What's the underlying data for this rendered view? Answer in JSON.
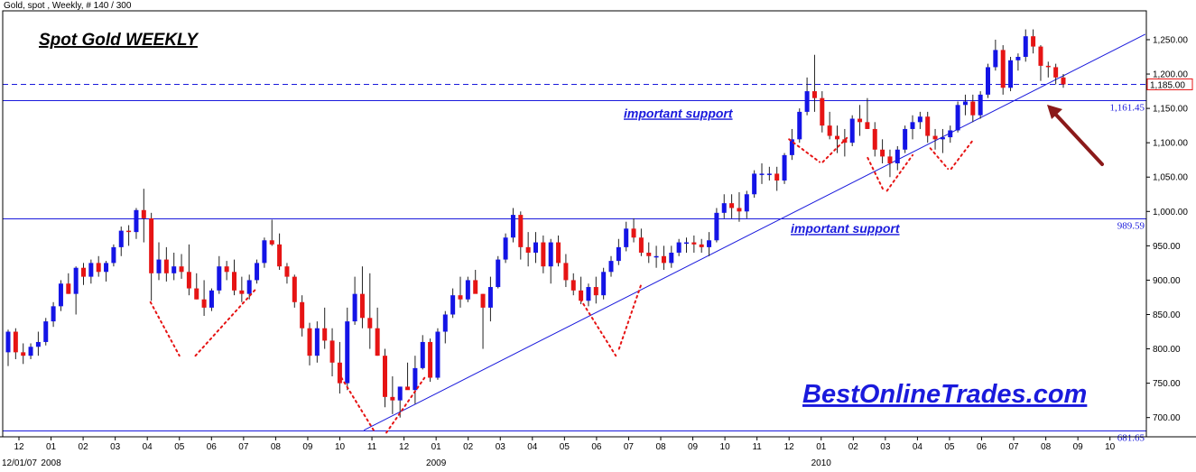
{
  "header_text": "Gold, spot , Weekly, # 140 / 300",
  "chart_data": {
    "type": "candlestick",
    "title": "Spot Gold WEEKLY",
    "xlabel": "",
    "ylabel": "",
    "ylim": [
      672,
      1292
    ],
    "y_ticks": [
      700,
      750,
      800,
      850,
      900,
      950,
      1000,
      1050,
      1100,
      1150,
      1200,
      1250
    ],
    "y_tick_labels": [
      "700.00",
      "750.00",
      "800.00",
      "850.00",
      "900.00",
      "950.00",
      "1,000.00",
      "1,050.00",
      "1,100.00",
      "1,150.00",
      "1,200.00",
      "1,250.00"
    ],
    "x_tick_labels": [
      "12",
      "01",
      "02",
      "03",
      "04",
      "05",
      "06",
      "07",
      "08",
      "09",
      "10",
      "11",
      "12",
      "01",
      "02",
      "03",
      "04",
      "05",
      "06",
      "07",
      "08",
      "09",
      "10",
      "11",
      "12",
      "01",
      "02",
      "03",
      "04",
      "05",
      "06",
      "07",
      "08",
      "09",
      "10"
    ],
    "x_year_labels": [
      {
        "label": "12/01/07",
        "index": 0
      },
      {
        "label": "2008",
        "index": 1
      },
      {
        "label": "2009",
        "index": 13
      },
      {
        "label": "2010",
        "index": 25
      }
    ],
    "colors": {
      "up": "#1414e6",
      "down": "#e61414",
      "line": "#1a1adc",
      "dotted": "#e61414",
      "arrow": "#8b1a1a"
    },
    "last_price_label": "1,185.00",
    "levels": [
      {
        "value": 1161.45,
        "label": "1,161.45"
      },
      {
        "value": 989.59,
        "label": "989.59"
      },
      {
        "value": 681.65,
        "label": "681.65"
      }
    ],
    "dashed_level": 1185,
    "annotations": [
      {
        "text": "important support",
        "level_index": 0
      },
      {
        "text": "important support",
        "level_index": 1
      }
    ],
    "trendline": {
      "from": {
        "month": 10.75,
        "value": 681.65
      },
      "to": {
        "month": 35.1,
        "value": 1258
      }
    },
    "dotted_segments": [
      [
        [
          4.1,
          868
        ],
        [
          5.0,
          790
        ]
      ],
      [
        [
          5.5,
          790
        ],
        [
          7.4,
          888
        ]
      ],
      [
        [
          10.05,
          758
        ],
        [
          11.1,
          678
        ]
      ],
      [
        [
          11.45,
          678
        ],
        [
          12.7,
          762
        ]
      ],
      [
        [
          17.5,
          872
        ],
        [
          18.6,
          790
        ]
      ],
      [
        [
          18.7,
          800
        ],
        [
          19.4,
          895
        ]
      ],
      [
        [
          24.0,
          1105
        ],
        [
          24.95,
          1072
        ]
      ],
      [
        [
          25.05,
          1072
        ],
        [
          25.8,
          1107
        ]
      ],
      [
        [
          26.45,
          1078
        ],
        [
          26.95,
          1030
        ]
      ],
      [
        [
          27.05,
          1030
        ],
        [
          27.85,
          1082
        ]
      ],
      [
        [
          28.4,
          1092
        ],
        [
          28.95,
          1062
        ]
      ],
      [
        [
          29.05,
          1062
        ],
        [
          29.75,
          1105
        ]
      ]
    ],
    "brand": "BestOnlineTrades.com",
    "candles": [
      {
        "o": 795,
        "h": 828,
        "l": 775,
        "c": 825
      },
      {
        "o": 825,
        "h": 830,
        "l": 785,
        "c": 795
      },
      {
        "o": 795,
        "h": 808,
        "l": 778,
        "c": 790
      },
      {
        "o": 790,
        "h": 808,
        "l": 785,
        "c": 803
      },
      {
        "o": 803,
        "h": 825,
        "l": 790,
        "c": 810
      },
      {
        "o": 810,
        "h": 845,
        "l": 805,
        "c": 840
      },
      {
        "o": 840,
        "h": 868,
        "l": 832,
        "c": 862
      },
      {
        "o": 862,
        "h": 900,
        "l": 855,
        "c": 895
      },
      {
        "o": 895,
        "h": 910,
        "l": 880,
        "c": 880
      },
      {
        "o": 880,
        "h": 920,
        "l": 850,
        "c": 918
      },
      {
        "o": 918,
        "h": 925,
        "l": 893,
        "c": 905
      },
      {
        "o": 905,
        "h": 930,
        "l": 895,
        "c": 925
      },
      {
        "o": 925,
        "h": 935,
        "l": 905,
        "c": 912
      },
      {
        "o": 912,
        "h": 928,
        "l": 898,
        "c": 925
      },
      {
        "o": 925,
        "h": 952,
        "l": 920,
        "c": 948
      },
      {
        "o": 948,
        "h": 978,
        "l": 935,
        "c": 972
      },
      {
        "o": 972,
        "h": 980,
        "l": 950,
        "c": 970
      },
      {
        "o": 970,
        "h": 1005,
        "l": 960,
        "c": 1002
      },
      {
        "o": 1002,
        "h": 1033,
        "l": 955,
        "c": 990
      },
      {
        "o": 990,
        "h": 998,
        "l": 870,
        "c": 910
      },
      {
        "o": 910,
        "h": 955,
        "l": 900,
        "c": 930
      },
      {
        "o": 930,
        "h": 948,
        "l": 898,
        "c": 910
      },
      {
        "o": 910,
        "h": 940,
        "l": 900,
        "c": 920
      },
      {
        "o": 920,
        "h": 938,
        "l": 902,
        "c": 912
      },
      {
        "o": 912,
        "h": 952,
        "l": 878,
        "c": 888
      },
      {
        "o": 888,
        "h": 910,
        "l": 872,
        "c": 872
      },
      {
        "o": 872,
        "h": 900,
        "l": 848,
        "c": 860
      },
      {
        "o": 860,
        "h": 888,
        "l": 855,
        "c": 885
      },
      {
        "o": 885,
        "h": 935,
        "l": 880,
        "c": 920
      },
      {
        "o": 920,
        "h": 928,
        "l": 900,
        "c": 912
      },
      {
        "o": 912,
        "h": 930,
        "l": 878,
        "c": 885
      },
      {
        "o": 885,
        "h": 905,
        "l": 868,
        "c": 880
      },
      {
        "o": 880,
        "h": 908,
        "l": 872,
        "c": 900
      },
      {
        "o": 900,
        "h": 930,
        "l": 895,
        "c": 925
      },
      {
        "o": 925,
        "h": 962,
        "l": 918,
        "c": 958
      },
      {
        "o": 958,
        "h": 988,
        "l": 950,
        "c": 952
      },
      {
        "o": 952,
        "h": 968,
        "l": 915,
        "c": 920
      },
      {
        "o": 920,
        "h": 925,
        "l": 895,
        "c": 905
      },
      {
        "o": 905,
        "h": 908,
        "l": 860,
        "c": 868
      },
      {
        "o": 868,
        "h": 878,
        "l": 818,
        "c": 830
      },
      {
        "o": 830,
        "h": 838,
        "l": 776,
        "c": 790
      },
      {
        "o": 790,
        "h": 840,
        "l": 780,
        "c": 830
      },
      {
        "o": 830,
        "h": 860,
        "l": 800,
        "c": 812
      },
      {
        "o": 812,
        "h": 830,
        "l": 760,
        "c": 780
      },
      {
        "o": 780,
        "h": 810,
        "l": 735,
        "c": 750
      },
      {
        "o": 750,
        "h": 860,
        "l": 740,
        "c": 840
      },
      {
        "o": 840,
        "h": 905,
        "l": 835,
        "c": 880
      },
      {
        "o": 880,
        "h": 920,
        "l": 830,
        "c": 845
      },
      {
        "o": 845,
        "h": 910,
        "l": 800,
        "c": 830
      },
      {
        "o": 830,
        "h": 860,
        "l": 790,
        "c": 790
      },
      {
        "o": 790,
        "h": 800,
        "l": 715,
        "c": 730
      },
      {
        "o": 730,
        "h": 760,
        "l": 705,
        "c": 725
      },
      {
        "o": 725,
        "h": 745,
        "l": 700,
        "c": 745
      },
      {
        "o": 745,
        "h": 780,
        "l": 742,
        "c": 740
      },
      {
        "o": 740,
        "h": 790,
        "l": 720,
        "c": 772
      },
      {
        "o": 772,
        "h": 820,
        "l": 770,
        "c": 810
      },
      {
        "o": 810,
        "h": 815,
        "l": 752,
        "c": 758
      },
      {
        "o": 758,
        "h": 830,
        "l": 755,
        "c": 825
      },
      {
        "o": 825,
        "h": 855,
        "l": 808,
        "c": 850
      },
      {
        "o": 850,
        "h": 888,
        "l": 845,
        "c": 878
      },
      {
        "o": 878,
        "h": 905,
        "l": 860,
        "c": 872
      },
      {
        "o": 872,
        "h": 905,
        "l": 868,
        "c": 900
      },
      {
        "o": 900,
        "h": 915,
        "l": 885,
        "c": 880
      },
      {
        "o": 880,
        "h": 880,
        "l": 800,
        "c": 860
      },
      {
        "o": 860,
        "h": 905,
        "l": 840,
        "c": 890
      },
      {
        "o": 890,
        "h": 935,
        "l": 888,
        "c": 930
      },
      {
        "o": 930,
        "h": 968,
        "l": 925,
        "c": 962
      },
      {
        "o": 962,
        "h": 1005,
        "l": 955,
        "c": 995
      },
      {
        "o": 995,
        "h": 1000,
        "l": 930,
        "c": 948
      },
      {
        "o": 948,
        "h": 970,
        "l": 920,
        "c": 940
      },
      {
        "o": 940,
        "h": 970,
        "l": 925,
        "c": 955
      },
      {
        "o": 955,
        "h": 965,
        "l": 910,
        "c": 920
      },
      {
        "o": 920,
        "h": 960,
        "l": 895,
        "c": 955
      },
      {
        "o": 955,
        "h": 965,
        "l": 920,
        "c": 925
      },
      {
        "o": 925,
        "h": 938,
        "l": 890,
        "c": 900
      },
      {
        "o": 900,
        "h": 910,
        "l": 878,
        "c": 885
      },
      {
        "o": 885,
        "h": 905,
        "l": 865,
        "c": 870
      },
      {
        "o": 870,
        "h": 895,
        "l": 862,
        "c": 890
      },
      {
        "o": 890,
        "h": 905,
        "l": 866,
        "c": 878
      },
      {
        "o": 878,
        "h": 918,
        "l": 872,
        "c": 912
      },
      {
        "o": 912,
        "h": 935,
        "l": 905,
        "c": 928
      },
      {
        "o": 928,
        "h": 960,
        "l": 922,
        "c": 948
      },
      {
        "o": 948,
        "h": 985,
        "l": 942,
        "c": 975
      },
      {
        "o": 975,
        "h": 990,
        "l": 955,
        "c": 962
      },
      {
        "o": 962,
        "h": 975,
        "l": 935,
        "c": 940
      },
      {
        "o": 940,
        "h": 955,
        "l": 925,
        "c": 935
      },
      {
        "o": 935,
        "h": 950,
        "l": 918,
        "c": 935
      },
      {
        "o": 935,
        "h": 950,
        "l": 915,
        "c": 925
      },
      {
        "o": 925,
        "h": 950,
        "l": 918,
        "c": 940
      },
      {
        "o": 940,
        "h": 960,
        "l": 935,
        "c": 955
      },
      {
        "o": 955,
        "h": 962,
        "l": 940,
        "c": 955
      },
      {
        "o": 955,
        "h": 965,
        "l": 940,
        "c": 952
      },
      {
        "o": 952,
        "h": 960,
        "l": 940,
        "c": 948
      },
      {
        "o": 948,
        "h": 970,
        "l": 935,
        "c": 958
      },
      {
        "o": 958,
        "h": 1005,
        "l": 955,
        "c": 998
      },
      {
        "o": 998,
        "h": 1025,
        "l": 990,
        "c": 1012
      },
      {
        "o": 1012,
        "h": 1025,
        "l": 990,
        "c": 1005
      },
      {
        "o": 1005,
        "h": 1028,
        "l": 985,
        "c": 1000
      },
      {
        "o": 1000,
        "h": 1030,
        "l": 990,
        "c": 1025
      },
      {
        "o": 1025,
        "h": 1060,
        "l": 1020,
        "c": 1055
      },
      {
        "o": 1055,
        "h": 1070,
        "l": 1040,
        "c": 1055
      },
      {
        "o": 1055,
        "h": 1065,
        "l": 1045,
        "c": 1055
      },
      {
        "o": 1055,
        "h": 1065,
        "l": 1030,
        "c": 1045
      },
      {
        "o": 1045,
        "h": 1085,
        "l": 1040,
        "c": 1082
      },
      {
        "o": 1082,
        "h": 1120,
        "l": 1075,
        "c": 1105
      },
      {
        "o": 1105,
        "h": 1150,
        "l": 1100,
        "c": 1145
      },
      {
        "o": 1145,
        "h": 1195,
        "l": 1140,
        "c": 1175
      },
      {
        "o": 1175,
        "h": 1228,
        "l": 1145,
        "c": 1165
      },
      {
        "o": 1165,
        "h": 1175,
        "l": 1115,
        "c": 1125
      },
      {
        "o": 1125,
        "h": 1145,
        "l": 1105,
        "c": 1110
      },
      {
        "o": 1110,
        "h": 1125,
        "l": 1085,
        "c": 1105
      },
      {
        "o": 1105,
        "h": 1120,
        "l": 1080,
        "c": 1100
      },
      {
        "o": 1100,
        "h": 1140,
        "l": 1095,
        "c": 1135
      },
      {
        "o": 1135,
        "h": 1155,
        "l": 1110,
        "c": 1130
      },
      {
        "o": 1130,
        "h": 1165,
        "l": 1120,
        "c": 1120
      },
      {
        "o": 1120,
        "h": 1130,
        "l": 1080,
        "c": 1090
      },
      {
        "o": 1090,
        "h": 1105,
        "l": 1070,
        "c": 1080
      },
      {
        "o": 1080,
        "h": 1090,
        "l": 1050,
        "c": 1070
      },
      {
        "o": 1070,
        "h": 1095,
        "l": 1060,
        "c": 1090
      },
      {
        "o": 1090,
        "h": 1125,
        "l": 1085,
        "c": 1120
      },
      {
        "o": 1120,
        "h": 1140,
        "l": 1105,
        "c": 1130
      },
      {
        "o": 1130,
        "h": 1145,
        "l": 1120,
        "c": 1138
      },
      {
        "o": 1138,
        "h": 1145,
        "l": 1100,
        "c": 1110
      },
      {
        "o": 1110,
        "h": 1120,
        "l": 1090,
        "c": 1105
      },
      {
        "o": 1105,
        "h": 1120,
        "l": 1085,
        "c": 1108
      },
      {
        "o": 1108,
        "h": 1125,
        "l": 1100,
        "c": 1118
      },
      {
        "o": 1118,
        "h": 1160,
        "l": 1115,
        "c": 1155
      },
      {
        "o": 1155,
        "h": 1170,
        "l": 1140,
        "c": 1160
      },
      {
        "o": 1160,
        "h": 1170,
        "l": 1130,
        "c": 1140
      },
      {
        "o": 1140,
        "h": 1175,
        "l": 1135,
        "c": 1170
      },
      {
        "o": 1170,
        "h": 1215,
        "l": 1165,
        "c": 1210
      },
      {
        "o": 1210,
        "h": 1250,
        "l": 1205,
        "c": 1235
      },
      {
        "o": 1235,
        "h": 1242,
        "l": 1170,
        "c": 1180
      },
      {
        "o": 1180,
        "h": 1225,
        "l": 1175,
        "c": 1220
      },
      {
        "o": 1220,
        "h": 1230,
        "l": 1205,
        "c": 1225
      },
      {
        "o": 1225,
        "h": 1265,
        "l": 1218,
        "c": 1255
      },
      {
        "o": 1255,
        "h": 1265,
        "l": 1230,
        "c": 1240
      },
      {
        "o": 1240,
        "h": 1242,
        "l": 1190,
        "c": 1212
      },
      {
        "o": 1212,
        "h": 1218,
        "l": 1195,
        "c": 1210
      },
      {
        "o": 1210,
        "h": 1215,
        "l": 1185,
        "c": 1195
      },
      {
        "o": 1195,
        "h": 1200,
        "l": 1180,
        "c": 1185
      }
    ]
  }
}
